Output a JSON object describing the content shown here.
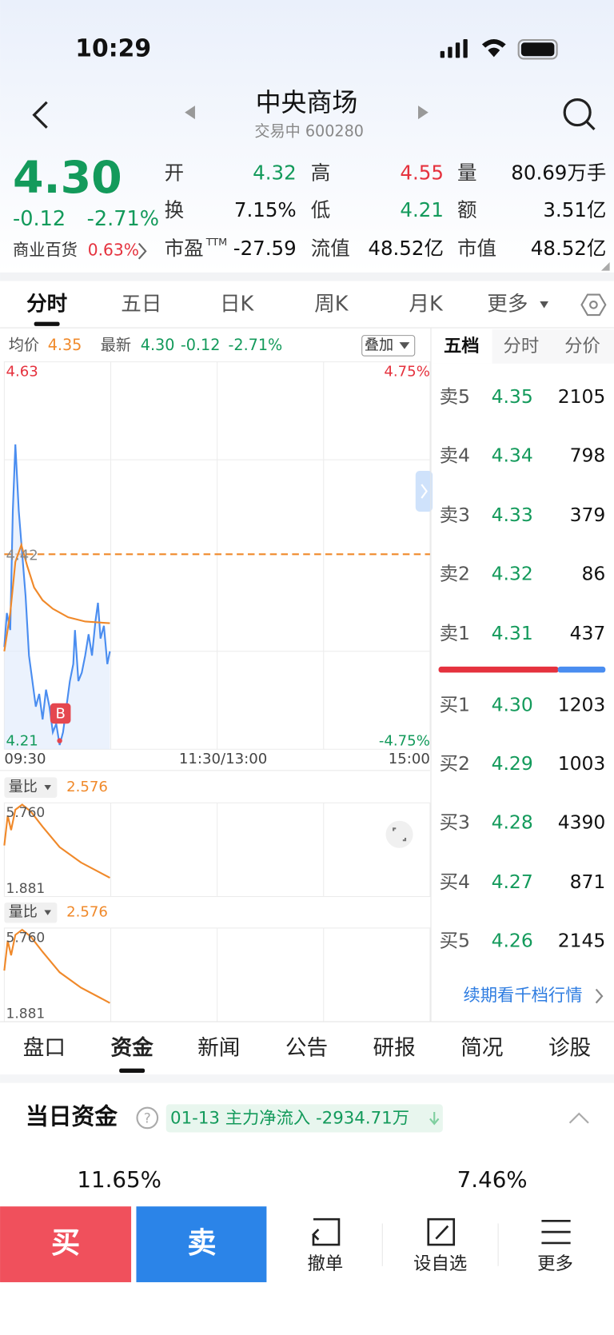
{
  "status": {
    "time": "10:29"
  },
  "header": {
    "title": "中央商场",
    "subtitle": "交易中 600280"
  },
  "quote": {
    "price": "4.30",
    "change": "-0.12",
    "change_pct": "-2.71%",
    "sector": "商业百货",
    "sector_pct": "0.63%",
    "stats": [
      [
        {
          "label": "开",
          "value": "4.32",
          "tone": "green"
        },
        {
          "label": "高",
          "value": "4.55",
          "tone": "red"
        },
        {
          "label": "量",
          "value": "80.69万手",
          "tone": "dark"
        }
      ],
      [
        {
          "label": "换",
          "value": "7.15%",
          "tone": "dark"
        },
        {
          "label": "低",
          "value": "4.21",
          "tone": "green"
        },
        {
          "label": "额",
          "value": "3.51亿",
          "tone": "dark"
        }
      ],
      [
        {
          "label": "市盈",
          "suffix": "TTM",
          "value": "-27.59",
          "tone": "dark"
        },
        {
          "label": "流值",
          "value": "48.52亿",
          "tone": "dark"
        },
        {
          "label": "市值",
          "value": "48.52亿",
          "tone": "dark"
        }
      ]
    ]
  },
  "tabs": [
    "分时",
    "五日",
    "日K",
    "周K",
    "月K",
    "更多"
  ],
  "chart": {
    "avg_label": "均价",
    "avg": "4.35",
    "last_label": "最新",
    "last": "4.30",
    "last_change": "-0.12",
    "last_pct": "-2.71%",
    "overlay": "叠加",
    "y_top": "4.63",
    "y_mid": "4.42",
    "y_bottom": "4.21",
    "pct_top": "4.75%",
    "pct_bottom": "-4.75%",
    "times": [
      "09:30",
      "11:30/13:00",
      "15:00"
    ],
    "marker": "B"
  },
  "panels": [
    {
      "label": "量比",
      "value": "2.576",
      "top": "5.760",
      "bottom": "1.881"
    },
    {
      "label": "量比",
      "value": "2.576",
      "top": "5.760",
      "bottom": "1.881"
    }
  ],
  "order_book": {
    "tabs": [
      "五档",
      "分时",
      "分价"
    ],
    "asks": [
      [
        "卖5",
        "4.35",
        "2105"
      ],
      [
        "卖4",
        "4.34",
        "798"
      ],
      [
        "卖3",
        "4.33",
        "379"
      ],
      [
        "卖2",
        "4.32",
        "86"
      ],
      [
        "卖1",
        "4.31",
        "437"
      ]
    ],
    "bids": [
      [
        "买1",
        "4.30",
        "1203"
      ],
      [
        "买2",
        "4.29",
        "1003"
      ],
      [
        "买3",
        "4.28",
        "4390"
      ],
      [
        "买4",
        "4.27",
        "871"
      ],
      [
        "买5",
        "4.26",
        "2145"
      ]
    ],
    "link": "续期看千档行情"
  },
  "bottom_tabs": [
    "盘口",
    "资金",
    "新闻",
    "公告",
    "研报",
    "简况",
    "诊股"
  ],
  "fund": {
    "title": "当日资金",
    "note": "01-13 主力净流入 -2934.71万",
    "left": "11.65%",
    "right": "7.46%"
  },
  "actions": {
    "buy": "买",
    "sell": "卖",
    "items": [
      "撤单",
      "设自选",
      "更多"
    ]
  }
}
